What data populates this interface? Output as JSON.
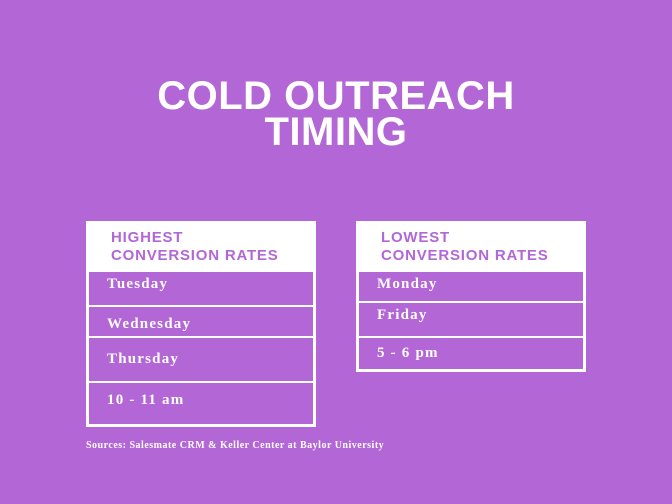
{
  "title": {
    "line1": "COLD OUTREACH",
    "line2": "TIMING"
  },
  "highest": {
    "header_line1": "HIGHEST",
    "header_line2": "CONVERSION RATES",
    "items": [
      "Tuesday",
      "Wednesday",
      "Thursday",
      "10 - 11 am"
    ]
  },
  "lowest": {
    "header_line1": "LOWEST",
    "header_line2": "CONVERSION RATES",
    "items": [
      "Monday",
      "Friday",
      "5 - 6 pm"
    ]
  },
  "sources": "Sources: Salesmate CRM & Keller Center at Baylor University",
  "colors": {
    "background": "#b366d6",
    "panel": "#ffffff"
  }
}
